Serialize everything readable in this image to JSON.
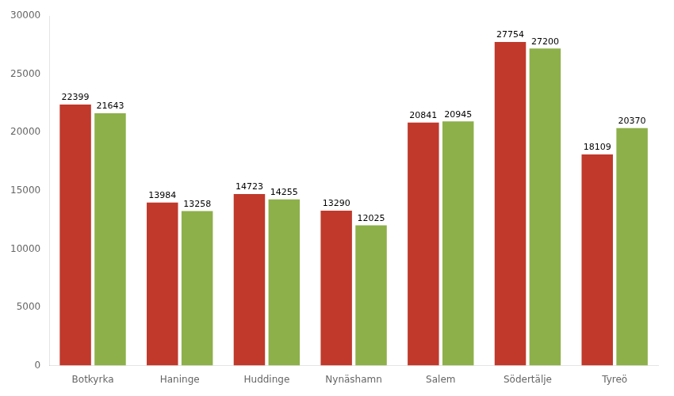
{
  "chart_data": {
    "type": "bar",
    "categories": [
      "Botkyrka",
      "Haninge",
      "Huddinge",
      "Nynäshamn",
      "Salem",
      "Södertälje",
      "Tyreö"
    ],
    "series": [
      {
        "color": "#c0392b",
        "values": [
          22399,
          13984,
          14723,
          13290,
          20841,
          27754,
          18109
        ]
      },
      {
        "color": "#8db04a",
        "values": [
          21643,
          13258,
          14255,
          12025,
          20945,
          27200,
          20370
        ]
      }
    ],
    "ylim": [
      0,
      30000
    ],
    "yticks": [
      0,
      5000,
      10000,
      15000,
      20000,
      25000,
      30000
    ],
    "grid": false,
    "data_labels": true
  }
}
